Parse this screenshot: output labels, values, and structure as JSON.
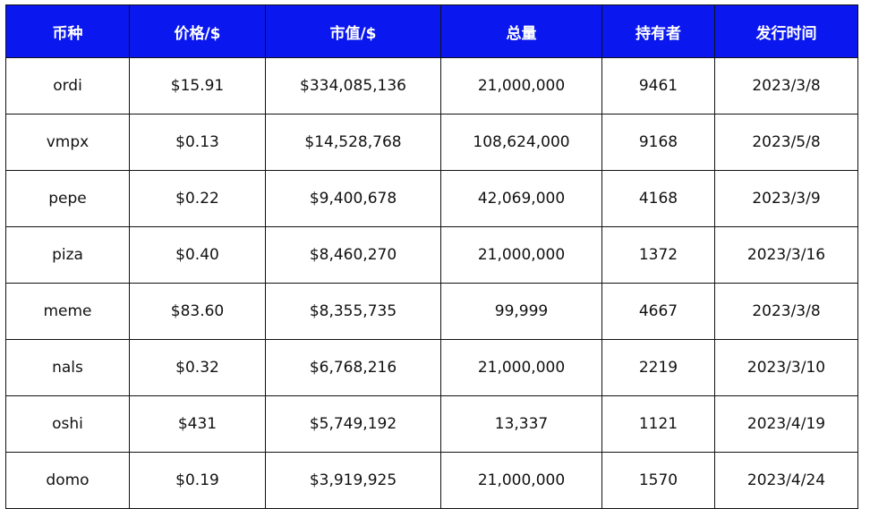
{
  "table": {
    "header_color": "#0a17ee",
    "columns": [
      "币种",
      "价格/$",
      "市值/$",
      "总量",
      "持有者",
      "发行时间"
    ],
    "rows": [
      [
        "ordi",
        "$15.91",
        "$334,085,136",
        "21,000,000",
        "9461",
        "2023/3/8"
      ],
      [
        "vmpx",
        "$0.13",
        "$14,528,768",
        "108,624,000",
        "9168",
        "2023/5/8"
      ],
      [
        "pepe",
        "$0.22",
        "$9,400,678",
        "42,069,000",
        "4168",
        "2023/3/9"
      ],
      [
        "piza",
        "$0.40",
        "$8,460,270",
        "21,000,000",
        "1372",
        "2023/3/16"
      ],
      [
        "meme",
        "$83.60",
        "$8,355,735",
        "99,999",
        "4667",
        "2023/3/8"
      ],
      [
        "nals",
        "$0.32",
        "$6,768,216",
        "21,000,000",
        "2219",
        "2023/3/10"
      ],
      [
        "oshi",
        "$431",
        "$5,749,192",
        "13,337",
        "1121",
        "2023/4/19"
      ],
      [
        "domo",
        "$0.19",
        "$3,919,925",
        "21,000,000",
        "1570",
        "2023/4/24"
      ]
    ]
  }
}
